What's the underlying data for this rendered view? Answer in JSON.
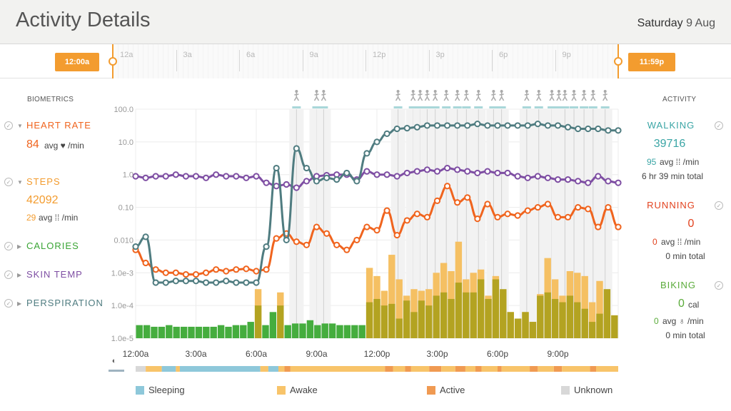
{
  "header": {
    "title": "Activity Details",
    "date_day": "Saturday",
    "date_num": "9 Aug"
  },
  "timeline": {
    "start_label": "12:00a",
    "end_label": "11:59p",
    "ticks": [
      "12a",
      "3a",
      "6a",
      "9a",
      "12p",
      "3p",
      "6p",
      "9p"
    ]
  },
  "biometrics": {
    "title": "BIOMETRICS",
    "heart_rate": {
      "label": "HEART RATE",
      "value": "84",
      "unit": "avg ♥ /min",
      "color": "#f0641e"
    },
    "steps": {
      "label": "STEPS",
      "value": "42092",
      "avg": "29",
      "unit": "avg ⁞⁞ /min",
      "color": "#f39c2f"
    },
    "calories": {
      "label": "CALORIES",
      "color": "#3aa535"
    },
    "skin_temp": {
      "label": "SKIN TEMP",
      "color": "#7e4ea3"
    },
    "perspiration": {
      "label": "PERSPIRATION",
      "color": "#4f7c80"
    }
  },
  "activity": {
    "title": "ACTIVITY",
    "walking": {
      "label": "WALKING",
      "value": "39716",
      "avg": "95",
      "avg_unit": "avg ⁞⁞ /min",
      "total": "6 hr 39 min total",
      "color": "#3aa5a5"
    },
    "running": {
      "label": "RUNNING",
      "value": "0",
      "avg": "0",
      "avg_unit": "avg ⁞⁞ /min",
      "total": "0 min total",
      "color": "#e2421e"
    },
    "biking": {
      "label": "BIKING",
      "value": "0",
      "unit": "cal",
      "avg": "0",
      "avg_unit": "avg ♁ /min",
      "total": "0 min total",
      "color": "#5aab3a"
    }
  },
  "legend": [
    {
      "label": "Sleeping",
      "color": "#8ec8da"
    },
    {
      "label": "Awake",
      "color": "#f8c46a"
    },
    {
      "label": "Active",
      "color": "#f09a52"
    },
    {
      "label": "Unknown",
      "color": "#d8d8d8"
    }
  ],
  "chart_data": {
    "type": "bar",
    "y_ticks": [
      "100.0",
      "10.0",
      "1.0",
      "0.10",
      "0.010",
      "1.0e-3",
      "1.0e-4",
      "1.0e-5"
    ],
    "x_ticks": [
      "12:00a",
      "3:00a",
      "6:00a",
      "9:00a",
      "12:00p",
      "3:00p",
      "6:00p",
      "9:00p"
    ],
    "x_range_hours": [
      0,
      24
    ],
    "y_log_range": [
      -5,
      2
    ],
    "bars": {
      "green_log": [
        -4.6,
        -4.6,
        -4.65,
        -4.65,
        -4.6,
        -4.65,
        -4.65,
        -4.65,
        -4.65,
        -4.65,
        -4.65,
        -4.6,
        -4.65,
        -4.6,
        -4.6,
        -4.5,
        -4.0,
        -4.6,
        -4.2,
        -4.0,
        -4.6,
        -4.55,
        -4.55,
        -4.45,
        -4.6,
        -4.55,
        -4.55,
        -4.6,
        -4.6,
        -4.6,
        -4.6,
        -3.9,
        -3.8,
        -4.0,
        -3.95,
        -4.4,
        -3.85,
        -4.2,
        -3.85,
        -4.0,
        -3.7,
        -3.6,
        -3.8,
        -3.3,
        -3.6,
        -3.6,
        -3.2,
        -3.8,
        -3.2,
        -3.5,
        -4.2,
        -4.4,
        -4.2,
        -4.5,
        -3.7,
        -3.6,
        -3.8,
        -3.9,
        -3.7,
        -3.9,
        -4.1,
        -4.5,
        -4.25,
        -3.5,
        -4.3
      ],
      "orange_log": [
        -5,
        -5,
        -5,
        -5,
        -5,
        -5,
        -5,
        -5,
        -5,
        -5,
        -5,
        -5,
        -5,
        -5,
        -5,
        -5,
        -3.5,
        -5,
        -5,
        -3.6,
        -5,
        -5,
        -5,
        -5,
        -5,
        -5,
        -5,
        -5,
        -5,
        -5,
        -5,
        -2.85,
        -3.1,
        -3.55,
        -2.45,
        -3.2,
        -3.7,
        -3.5,
        -3.55,
        -3.5,
        -3.0,
        -2.7,
        -2.95,
        -2.05,
        -3.2,
        -3.0,
        -2.9,
        -3.7,
        -3.1,
        -3.65,
        -4.2,
        -4.4,
        -4.2,
        -4.5,
        -3.65,
        -2.55,
        -3.2,
        -3.7,
        -2.95,
        -3.0,
        -3.1,
        -3.9,
        -3.25,
        -4.2,
        -4.3
      ]
    },
    "series": [
      {
        "name": "HEART RATE",
        "color": "#f0641e",
        "x": [
          0,
          0.5,
          1,
          1.5,
          2,
          2.5,
          3,
          3.5,
          4,
          4.5,
          5,
          5.5,
          6,
          6.5,
          7,
          7.5,
          8,
          8.5,
          9,
          9.5,
          10,
          10.5,
          11,
          11.5,
          12,
          12.5,
          13,
          13.5,
          14,
          14.5,
          15,
          15.5,
          16,
          16.5,
          17,
          17.5,
          18,
          18.5,
          19,
          19.5,
          20,
          20.5,
          21,
          21.5,
          22,
          22.5,
          23,
          23.5,
          24
        ],
        "y_log": [
          -2.3,
          -2.7,
          -2.9,
          -3.0,
          -3.0,
          -3.05,
          -3.05,
          -3.0,
          -2.9,
          -2.95,
          -2.9,
          -2.88,
          -2.95,
          -2.9,
          -1.95,
          -1.8,
          -2.05,
          -2.15,
          -1.6,
          -1.8,
          -2.15,
          -2.3,
          -2.0,
          -1.6,
          -1.7,
          -1.1,
          -1.85,
          -1.4,
          -1.2,
          -1.3,
          -0.8,
          -0.35,
          -0.85,
          -0.7,
          -1.35,
          -0.9,
          -1.3,
          -1.2,
          -1.25,
          -1.1,
          -1.0,
          -0.9,
          -1.3,
          -1.3,
          -1.0,
          -1.05,
          -1.6,
          -1.0,
          -1.6
        ]
      },
      {
        "name": "SKIN TEMP",
        "color": "#7e4ea3",
        "x": [
          0,
          0.5,
          1,
          1.5,
          2,
          2.5,
          3,
          3.5,
          4,
          4.5,
          5,
          5.5,
          6,
          6.5,
          7,
          7.5,
          8,
          8.5,
          9,
          9.5,
          10,
          10.5,
          11,
          11.5,
          12,
          12.5,
          13,
          13.5,
          14,
          14.5,
          15,
          15.5,
          16,
          16.5,
          17,
          17.5,
          18,
          18.5,
          19,
          19.5,
          20,
          20.5,
          21,
          21.5,
          22,
          22.5,
          23,
          23.5,
          24
        ],
        "y_log": [
          -0.05,
          -0.1,
          -0.05,
          -0.05,
          0.0,
          -0.05,
          -0.05,
          -0.1,
          0.0,
          -0.05,
          -0.05,
          -0.1,
          -0.05,
          -0.25,
          -0.35,
          -0.3,
          -0.4,
          -0.2,
          -0.05,
          -0.02,
          0.0,
          0.0,
          -0.15,
          0.1,
          0.0,
          0.0,
          -0.05,
          0.05,
          0.1,
          0.15,
          0.1,
          0.2,
          0.15,
          0.1,
          0.05,
          0.1,
          0.05,
          0.05,
          -0.05,
          -0.1,
          -0.05,
          -0.1,
          -0.15,
          -0.15,
          -0.2,
          -0.25,
          -0.05,
          -0.2,
          -0.25
        ]
      },
      {
        "name": "PERSPIRATION",
        "color": "#4f7c80",
        "x": [
          0,
          0.5,
          1,
          1.5,
          2,
          2.5,
          3,
          3.5,
          4,
          4.5,
          5,
          5.5,
          6,
          6.5,
          7,
          7.5,
          8,
          8.5,
          9,
          9.5,
          10,
          10.5,
          11,
          11.5,
          12,
          12.5,
          13,
          13.5,
          14,
          14.5,
          15,
          15.5,
          16,
          16.5,
          17,
          17.5,
          18,
          18.5,
          19,
          19.5,
          20,
          20.5,
          21,
          21.5,
          22,
          22.5,
          23,
          23.5,
          24
        ],
        "y_log": [
          -2.2,
          -1.9,
          -3.3,
          -3.3,
          -3.25,
          -3.25,
          -3.25,
          -3.3,
          -3.3,
          -3.25,
          -3.3,
          -3.3,
          -3.3,
          -2.2,
          0.2,
          -2.0,
          0.8,
          0.2,
          -0.2,
          -0.1,
          -0.15,
          0.05,
          -0.2,
          0.65,
          1.0,
          1.25,
          1.4,
          1.42,
          1.45,
          1.5,
          1.5,
          1.5,
          1.5,
          1.5,
          1.55,
          1.5,
          1.5,
          1.5,
          1.5,
          1.5,
          1.55,
          1.5,
          1.5,
          1.45,
          1.4,
          1.4,
          1.4,
          1.35,
          1.35
        ]
      }
    ],
    "walk_icon_hours": [
      8.0,
      9.0,
      9.35,
      13.05,
      13.8,
      14.15,
      14.5,
      14.9,
      15.45,
      16.0,
      16.45,
      17.05,
      17.8,
      18.2,
      19.45,
      20.05,
      20.7,
      21.05,
      21.35,
      21.8,
      22.3,
      22.75,
      23.35
    ]
  }
}
